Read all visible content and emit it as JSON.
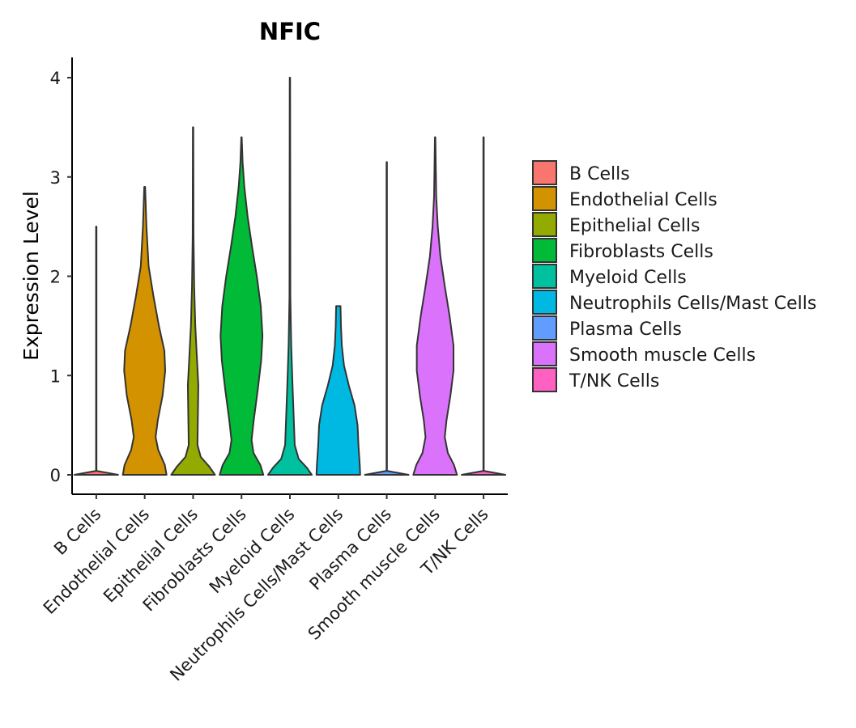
{
  "chart_data": {
    "type": "violin",
    "title": "NFIC",
    "xlabel": "",
    "ylabel": "Expression Level",
    "ylim": [
      -0.2,
      4.2
    ],
    "yticks": [
      0,
      1,
      2,
      3,
      4
    ],
    "ytick_labels": [
      "0",
      "1",
      "2",
      "3",
      "4"
    ],
    "legend_position": "right",
    "categories": [
      "B Cells",
      "Endothelial Cells",
      "Epithelial Cells",
      "Fibroblasts Cells",
      "Myeloid Cells",
      "Neutrophils Cells/Mast Cells",
      "Plasma Cells",
      "Smooth muscle Cells",
      "T/NK Cells"
    ],
    "colors": [
      "#F8766D",
      "#D39200",
      "#93AA00",
      "#00BA38",
      "#00C19F",
      "#00B9E3",
      "#619CFF",
      "#DB72FB",
      "#FF61C3"
    ],
    "series": [
      {
        "name": "B Cells",
        "max": 2.5,
        "density": [
          [
            0,
            1.0
          ],
          [
            0.04,
            0.01
          ],
          [
            2.5,
            0.01
          ]
        ]
      },
      {
        "name": "Endothelial Cells",
        "max": 2.9,
        "density": [
          [
            0,
            1.0
          ],
          [
            0.1,
            0.92
          ],
          [
            0.25,
            0.62
          ],
          [
            0.38,
            0.5
          ],
          [
            0.55,
            0.6
          ],
          [
            0.8,
            0.82
          ],
          [
            1.05,
            0.94
          ],
          [
            1.25,
            0.9
          ],
          [
            1.5,
            0.65
          ],
          [
            1.8,
            0.4
          ],
          [
            2.1,
            0.18
          ],
          [
            2.5,
            0.08
          ],
          [
            2.9,
            0.02
          ]
        ]
      },
      {
        "name": "Epithelial Cells",
        "max": 3.5,
        "density": [
          [
            0,
            1.0
          ],
          [
            0.08,
            0.75
          ],
          [
            0.18,
            0.35
          ],
          [
            0.3,
            0.2
          ],
          [
            0.6,
            0.22
          ],
          [
            0.9,
            0.24
          ],
          [
            1.2,
            0.17
          ],
          [
            1.5,
            0.1
          ],
          [
            1.9,
            0.05
          ],
          [
            2.4,
            0.02
          ],
          [
            3.5,
            0.01
          ]
        ]
      },
      {
        "name": "Fibroblasts Cells",
        "max": 3.4,
        "density": [
          [
            0,
            1.0
          ],
          [
            0.1,
            0.86
          ],
          [
            0.22,
            0.55
          ],
          [
            0.35,
            0.46
          ],
          [
            0.55,
            0.56
          ],
          [
            0.85,
            0.74
          ],
          [
            1.15,
            0.9
          ],
          [
            1.4,
            0.96
          ],
          [
            1.7,
            0.88
          ],
          [
            2.0,
            0.7
          ],
          [
            2.3,
            0.48
          ],
          [
            2.6,
            0.28
          ],
          [
            2.9,
            0.13
          ],
          [
            3.15,
            0.05
          ],
          [
            3.4,
            0.01
          ]
        ]
      },
      {
        "name": "Myeloid Cells",
        "max": 4.0,
        "density": [
          [
            0,
            1.0
          ],
          [
            0.07,
            0.78
          ],
          [
            0.16,
            0.4
          ],
          [
            0.3,
            0.22
          ],
          [
            0.6,
            0.17
          ],
          [
            0.9,
            0.12
          ],
          [
            1.3,
            0.06
          ],
          [
            1.8,
            0.02
          ],
          [
            4.0,
            0.01
          ]
        ]
      },
      {
        "name": "Neutrophils Cells/Mast Cells",
        "max": 1.7,
        "density": [
          [
            0,
            1.0
          ],
          [
            0.1,
            0.98
          ],
          [
            0.3,
            0.92
          ],
          [
            0.5,
            0.88
          ],
          [
            0.7,
            0.74
          ],
          [
            0.9,
            0.48
          ],
          [
            1.1,
            0.26
          ],
          [
            1.3,
            0.16
          ],
          [
            1.5,
            0.12
          ],
          [
            1.7,
            0.1
          ]
        ]
      },
      {
        "name": "Plasma Cells",
        "max": 3.15,
        "density": [
          [
            0,
            1.0
          ],
          [
            0.04,
            0.01
          ],
          [
            3.15,
            0.01
          ]
        ]
      },
      {
        "name": "Smooth muscle Cells",
        "max": 3.4,
        "density": [
          [
            0,
            1.0
          ],
          [
            0.1,
            0.86
          ],
          [
            0.22,
            0.58
          ],
          [
            0.38,
            0.44
          ],
          [
            0.55,
            0.52
          ],
          [
            0.8,
            0.7
          ],
          [
            1.05,
            0.84
          ],
          [
            1.3,
            0.84
          ],
          [
            1.6,
            0.66
          ],
          [
            1.9,
            0.44
          ],
          [
            2.2,
            0.24
          ],
          [
            2.5,
            0.12
          ],
          [
            2.8,
            0.05
          ],
          [
            3.4,
            0.01
          ]
        ]
      },
      {
        "name": "T/NK Cells",
        "max": 3.4,
        "density": [
          [
            0,
            1.0
          ],
          [
            0.04,
            0.01
          ],
          [
            3.4,
            0.01
          ]
        ]
      }
    ]
  }
}
